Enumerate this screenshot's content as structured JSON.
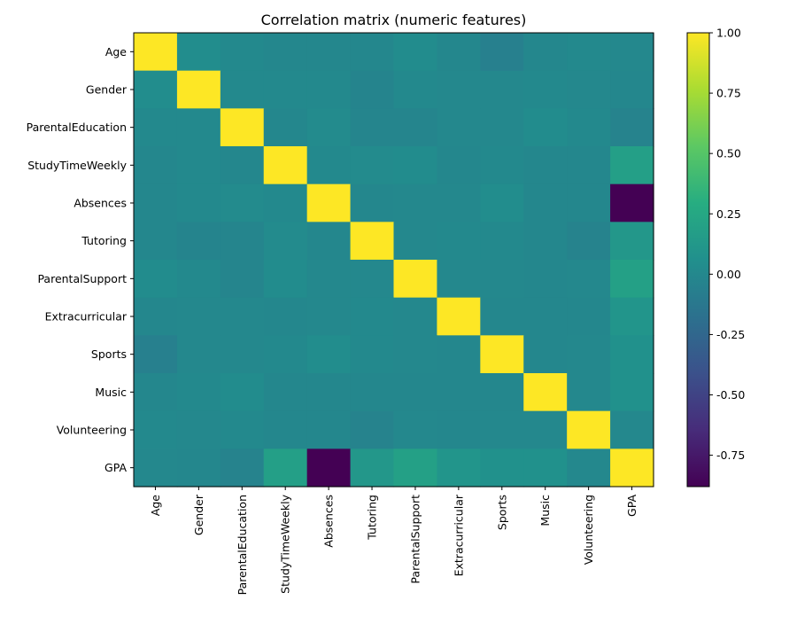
{
  "chart_data": {
    "type": "heatmap",
    "title": "Correlation matrix (numeric features)",
    "labels": [
      "Age",
      "Gender",
      "ParentalEducation",
      "StudyTimeWeekly",
      "Absences",
      "Tutoring",
      "ParentalSupport",
      "Extracurricular",
      "Sports",
      "Music",
      "Volunteering",
      "GPA"
    ],
    "matrix": [
      [
        1.0,
        0.04,
        0.01,
        -0.01,
        -0.01,
        -0.01,
        0.03,
        -0.01,
        -0.06,
        -0.01,
        0.01,
        0.0
      ],
      [
        0.04,
        1.0,
        0.01,
        0.01,
        0.01,
        -0.03,
        0.01,
        0.0,
        0.0,
        0.01,
        0.0,
        -0.01
      ],
      [
        0.01,
        0.01,
        1.0,
        -0.01,
        0.02,
        -0.02,
        -0.02,
        0.0,
        0.0,
        0.03,
        0.01,
        -0.04
      ],
      [
        -0.01,
        0.01,
        -0.01,
        1.0,
        0.01,
        0.02,
        0.03,
        -0.01,
        0.01,
        -0.01,
        -0.01,
        0.18
      ],
      [
        -0.01,
        0.01,
        0.02,
        0.01,
        1.0,
        -0.01,
        0.0,
        0.0,
        0.04,
        -0.01,
        -0.01,
        -0.88
      ],
      [
        -0.01,
        -0.03,
        -0.02,
        0.02,
        -0.01,
        1.0,
        0.0,
        0.01,
        0.01,
        -0.01,
        -0.04,
        0.12
      ],
      [
        0.03,
        0.01,
        -0.02,
        0.03,
        0.0,
        0.0,
        1.0,
        0.0,
        0.0,
        -0.01,
        0.0,
        0.19
      ],
      [
        -0.01,
        0.0,
        0.0,
        -0.01,
        0.0,
        0.01,
        0.0,
        1.0,
        -0.01,
        -0.01,
        -0.01,
        0.1
      ],
      [
        -0.06,
        0.0,
        0.0,
        0.01,
        0.04,
        0.01,
        0.0,
        -0.01,
        1.0,
        -0.01,
        0.0,
        0.07
      ],
      [
        -0.01,
        0.01,
        0.03,
        -0.01,
        -0.01,
        -0.01,
        -0.01,
        -0.01,
        -0.01,
        1.0,
        0.0,
        0.07
      ],
      [
        0.01,
        0.0,
        0.01,
        -0.01,
        -0.01,
        -0.04,
        0.0,
        -0.01,
        0.0,
        0.0,
        1.0,
        0.0
      ],
      [
        0.0,
        -0.01,
        -0.04,
        0.18,
        -0.88,
        0.12,
        0.19,
        0.1,
        0.07,
        0.07,
        0.0,
        1.0
      ]
    ],
    "vmin": -0.88,
    "vmax": 1.0,
    "colormap": "viridis",
    "colorbar_ticks": [
      "-0.75",
      "-0.50",
      "-0.25",
      "0.00",
      "0.25",
      "0.50",
      "0.75",
      "1.00"
    ],
    "colorbar_tick_values": [
      -0.75,
      -0.5,
      -0.25,
      0.0,
      0.25,
      0.5,
      0.75,
      1.0
    ],
    "grid": false,
    "colorbar_position": "right"
  }
}
